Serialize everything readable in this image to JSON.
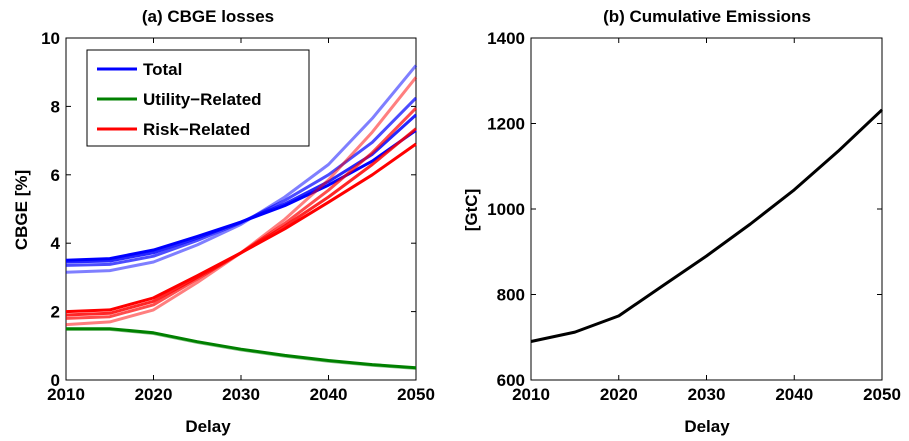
{
  "chart_data": [
    {
      "type": "line",
      "title": "(a) CBGE losses",
      "xlabel": "Delay",
      "ylabel": "CBGE [%]",
      "xlim": [
        2010,
        2050
      ],
      "ylim": [
        0,
        10
      ],
      "xticks": [
        "2010",
        "2020",
        "2030",
        "2040",
        "2050"
      ],
      "yticks": [
        "0",
        "2",
        "4",
        "6",
        "8",
        "10"
      ],
      "legend_position": "top-left",
      "legend": [
        {
          "label": "Total",
          "color": "#0000ff"
        },
        {
          "label": "Utility−Related",
          "color": "#008000"
        },
        {
          "label": "Risk−Related",
          "color": "#ff0000"
        }
      ],
      "x": [
        2010,
        2015,
        2020,
        2025,
        2030,
        2035,
        2040,
        2045,
        2050
      ],
      "series": [
        {
          "group": "Total",
          "color": "#0000ff",
          "opacity": 1.0,
          "values": [
            3.5,
            3.55,
            3.8,
            4.2,
            4.62,
            5.1,
            5.7,
            6.4,
            7.3
          ]
        },
        {
          "group": "Total",
          "color": "#0000ff",
          "opacity": 0.85,
          "values": [
            3.45,
            3.48,
            3.72,
            4.15,
            4.62,
            5.15,
            5.8,
            6.6,
            7.75
          ]
        },
        {
          "group": "Total",
          "color": "#0000ff",
          "opacity": 0.7,
          "values": [
            3.35,
            3.38,
            3.62,
            4.08,
            4.6,
            5.25,
            6.0,
            6.95,
            8.25
          ]
        },
        {
          "group": "Total",
          "color": "#0000ff",
          "opacity": 0.5,
          "values": [
            3.15,
            3.2,
            3.45,
            3.95,
            4.55,
            5.35,
            6.3,
            7.65,
            9.2
          ]
        },
        {
          "group": "Utility-Related",
          "color": "#008000",
          "opacity": 1.0,
          "values": [
            1.5,
            1.5,
            1.38,
            1.12,
            0.9,
            0.72,
            0.57,
            0.45,
            0.36
          ]
        },
        {
          "group": "Utility-Related",
          "color": "#008000",
          "opacity": 0.5,
          "values": [
            1.48,
            1.48,
            1.36,
            1.1,
            0.88,
            0.7,
            0.55,
            0.43,
            0.34
          ]
        },
        {
          "group": "Risk-Related",
          "color": "#ff0000",
          "opacity": 1.0,
          "values": [
            2.0,
            2.05,
            2.4,
            3.05,
            3.72,
            4.42,
            5.2,
            6.0,
            6.9
          ]
        },
        {
          "group": "Risk-Related",
          "color": "#ff0000",
          "opacity": 0.85,
          "values": [
            1.9,
            1.95,
            2.3,
            3.0,
            3.72,
            4.5,
            5.35,
            6.3,
            7.35
          ]
        },
        {
          "group": "Risk-Related",
          "color": "#ff0000",
          "opacity": 0.7,
          "values": [
            1.8,
            1.85,
            2.2,
            2.95,
            3.72,
            4.58,
            5.55,
            6.65,
            7.95
          ]
        },
        {
          "group": "Risk-Related",
          "color": "#ff0000",
          "opacity": 0.5,
          "values": [
            1.62,
            1.7,
            2.05,
            2.85,
            3.72,
            4.7,
            5.85,
            7.25,
            8.85
          ]
        }
      ]
    },
    {
      "type": "line",
      "title": "(b) Cumulative Emissions",
      "xlabel": "Delay",
      "ylabel": "[GtC]",
      "xlim": [
        2010,
        2050
      ],
      "ylim": [
        600,
        1400
      ],
      "xticks": [
        "2010",
        "2020",
        "2030",
        "2040",
        "2050"
      ],
      "yticks": [
        "600",
        "800",
        "1000",
        "1200",
        "1400"
      ],
      "x": [
        2010,
        2015,
        2020,
        2025,
        2030,
        2035,
        2040,
        2045,
        2050
      ],
      "series": [
        {
          "color": "#000000",
          "opacity": 1.0,
          "values": [
            690,
            712,
            750,
            820,
            890,
            965,
            1045,
            1135,
            1232
          ]
        }
      ]
    }
  ]
}
